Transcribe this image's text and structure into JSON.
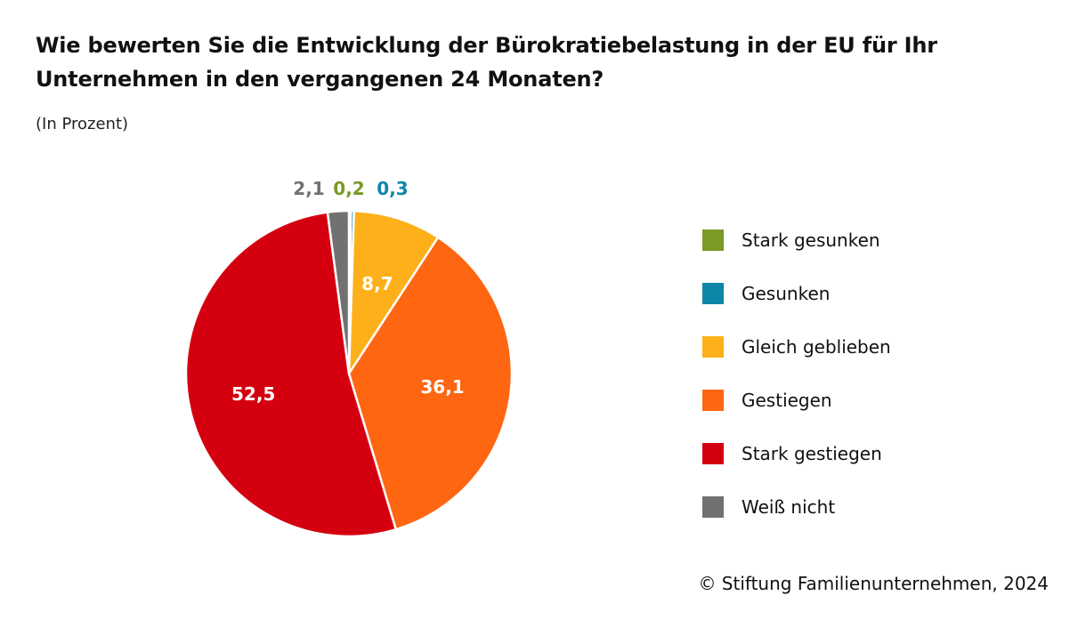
{
  "chart_data": {
    "type": "pie",
    "title": "Wie bewerten Sie die Entwicklung der Bürokratiebelastung in der EU für Ihr Unternehmen in den vergangenen 24 Monaten?",
    "subtitle": "(In Prozent)",
    "unit": "percent",
    "start": "top",
    "direction": "clockwise",
    "slices": [
      {
        "label": "Stark gesunken",
        "value": 0.2,
        "display": "0,2",
        "color": "#7a9a25",
        "label_position": "outside"
      },
      {
        "label": "Gesunken",
        "value": 0.3,
        "display": "0,3",
        "color": "#0e86a8",
        "label_position": "outside"
      },
      {
        "label": "Gleich geblieben",
        "value": 8.7,
        "display": "8,7",
        "color": "#fdb019",
        "label_position": "inside"
      },
      {
        "label": "Gestiegen",
        "value": 36.1,
        "display": "36,1",
        "color": "#fe6612",
        "label_position": "inside"
      },
      {
        "label": "Stark gestiegen",
        "value": 52.5,
        "display": "52,5",
        "color": "#d4000f",
        "label_position": "inside"
      },
      {
        "label": "Weiß nicht",
        "value": 2.1,
        "display": "2,1",
        "color": "#717171",
        "label_position": "outside"
      }
    ],
    "outside_labels_order": [
      "Weiß nicht",
      "Stark gesunken",
      "Gesunken"
    ],
    "legend": {
      "position": "right",
      "entries": [
        "Stark gesunken",
        "Gesunken",
        "Gleich geblieben",
        "Gestiegen",
        "Stark gestiegen",
        "Weiß nicht"
      ]
    }
  },
  "footer": "© Stiftung Familienunternehmen, 2024"
}
